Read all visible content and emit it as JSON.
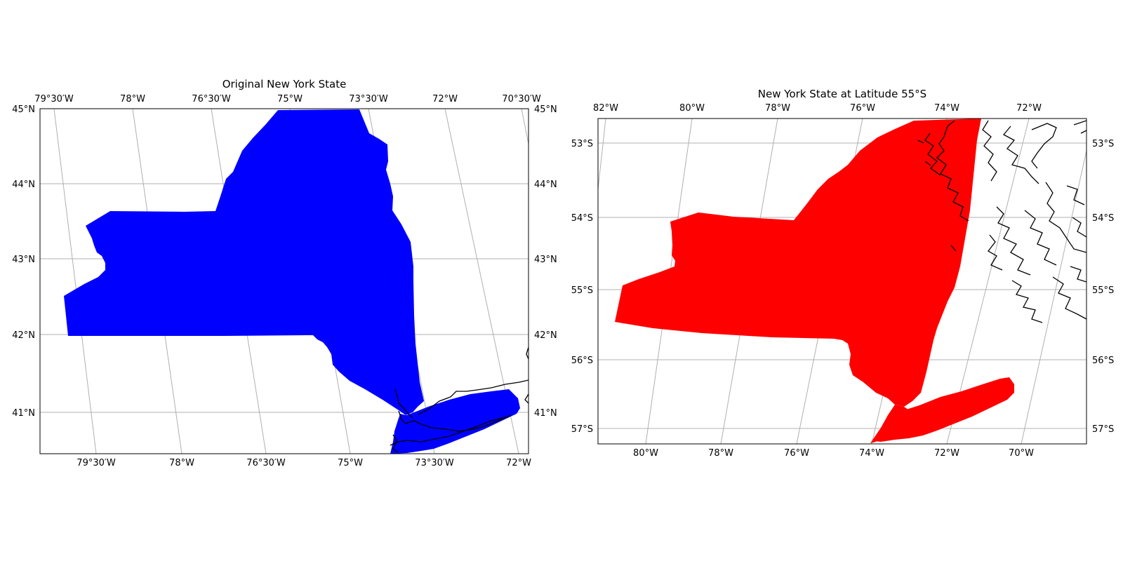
{
  "maps": [
    {
      "title": "Original New York State",
      "fill_color": "#0000ff",
      "top_ticks": [
        "79°30′W",
        "78°W",
        "76°30′W",
        "75°W",
        "73°30′W",
        "72°W",
        "70°30′W"
      ],
      "bottom_ticks": [
        "79°30′W",
        "78°W",
        "76°30′W",
        "75°W",
        "73°30′W",
        "72°W"
      ],
      "lat_ticks": [
        "45°N",
        "44°N",
        "43°N",
        "42°N",
        "41°N"
      ]
    },
    {
      "title": "New York State at Latitude 55°S",
      "fill_color": "#ff0000",
      "top_ticks": [
        "82°W",
        "80°W",
        "78°W",
        "76°W",
        "74°W",
        "72°W"
      ],
      "bottom_ticks": [
        "80°W",
        "78°W",
        "76°W",
        "74°W",
        "72°W",
        "70°W"
      ],
      "lat_ticks": [
        "53°S",
        "54°S",
        "55°S",
        "56°S",
        "57°S"
      ]
    }
  ]
}
